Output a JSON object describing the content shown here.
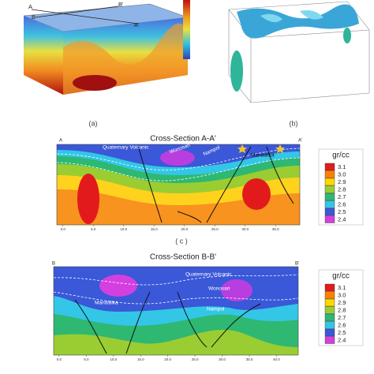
{
  "panel_a": {
    "label": "(a)",
    "points": [
      "A",
      "B",
      "B'",
      "A'"
    ]
  },
  "panel_b": {
    "label": "(b)"
  },
  "section_c": {
    "title": "Cross-Section A-A'",
    "label": "( c )",
    "start": "A",
    "end": "A'",
    "units": [
      "Quaternary Volcanic",
      "Wonosari",
      "Nampol",
      "Mandalika"
    ],
    "xticks": [
      "0.0",
      "5.0",
      "10.0",
      "15.0",
      "20.0",
      "25.0",
      "30.0",
      "35.0"
    ]
  },
  "section_d": {
    "title": "Cross-Section B-B'",
    "start": "B",
    "end": "B'",
    "units": [
      "Quaternary Volcanic",
      "Wonosari",
      "Mandalika",
      "Nampol"
    ],
    "xticks": [
      "0.0",
      "5.0",
      "10.0",
      "15.0",
      "20.0",
      "25.0",
      "30.0",
      "35.0",
      "40.0"
    ]
  },
  "legend": {
    "unit": "gr/cc",
    "items": [
      {
        "label": "3.1",
        "color": "#e31a1c"
      },
      {
        "label": "3.0",
        "color": "#ff7f00"
      },
      {
        "label": "2.9",
        "color": "#ffd700"
      },
      {
        "label": "2.8",
        "color": "#9acd32"
      },
      {
        "label": "2.7",
        "color": "#2eb872"
      },
      {
        "label": "2.6",
        "color": "#33c6e6"
      },
      {
        "label": "2.5",
        "color": "#3a58d8"
      },
      {
        "label": "2.4",
        "color": "#d43fe0"
      }
    ]
  }
}
